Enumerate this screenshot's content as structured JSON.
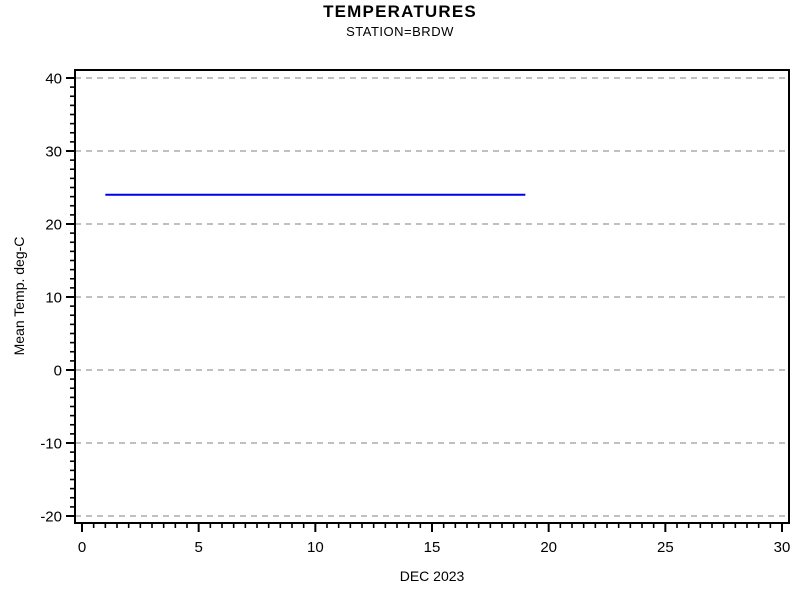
{
  "figure": {
    "background": "#ffffff",
    "text_color": "#000000"
  },
  "chart_data": {
    "type": "line",
    "title": "TEMPERATURES",
    "subtitle": "STATION=BRDW",
    "xlabel": "DEC 2023",
    "ylabel": "Mean Temp. deg-C",
    "xlim": [
      0,
      30
    ],
    "ylim": [
      -20,
      40
    ],
    "x_major_ticks": [
      0,
      5,
      10,
      15,
      20,
      25,
      30
    ],
    "y_major_ticks": [
      -20,
      -10,
      0,
      10,
      20,
      30,
      40
    ],
    "x_minor_per_interval": 9,
    "y_minor_per_interval": 7,
    "grid": "horizontal",
    "grid_style": "dashed",
    "gridline_color": "#808080",
    "axis_color": "#000000",
    "legend": "none",
    "series": [
      {
        "name": "Mean Temp",
        "color": "#0000e6",
        "stroke_width": 2,
        "points": [
          {
            "x": 1,
            "y": 24
          },
          {
            "x": 19,
            "y": 24
          }
        ]
      }
    ]
  }
}
